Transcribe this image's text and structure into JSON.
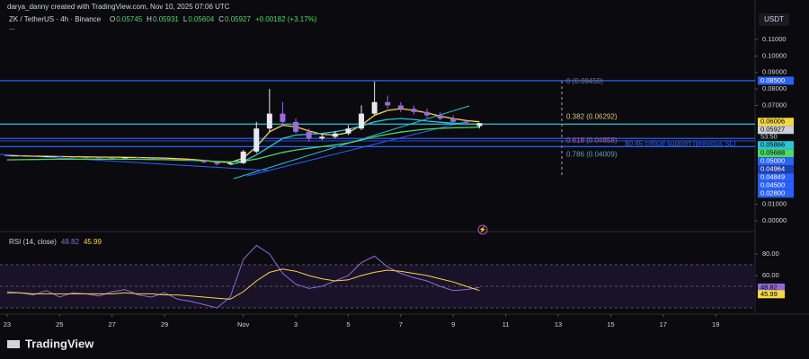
{
  "chart_data": {
    "type": "candlestick",
    "watermark": "darya_danny created with TradingView.com, Nov 10, 2025 07:06 UTC",
    "title": "ZK / TetherUS · 4h · Binance",
    "ohlc_prefixes": [
      "O",
      "H",
      "L",
      "C"
    ],
    "change": "+0.00182 (+3.17%)",
    "menu": "...",
    "currency": "USDT",
    "brand": "TradingView",
    "up_color": "#e8e8f0",
    "down_color": "#9c6ade",
    "x": [
      0,
      0.5,
      1,
      1.5,
      2,
      2.5,
      3,
      3.5,
      4,
      4.5,
      5,
      5.5,
      6,
      6.5,
      7,
      7.5,
      8,
      8.5,
      9,
      9.5,
      10,
      10.5,
      11,
      11.5,
      12,
      12.5,
      13,
      13.5,
      14,
      14.5,
      15,
      15.5,
      16,
      16.5,
      17,
      17.5,
      18
    ],
    "open": [
      0.0398,
      0.0395,
      0.0392,
      0.039,
      0.0392,
      0.0388,
      0.0386,
      0.0385,
      0.0384,
      0.0383,
      0.0385,
      0.038,
      0.0378,
      0.0375,
      0.037,
      0.0365,
      0.0355,
      0.0345,
      0.035,
      0.042,
      0.056,
      0.065,
      0.06,
      0.054,
      0.05,
      0.051,
      0.053,
      0.056,
      0.065,
      0.072,
      0.07,
      0.068,
      0.066,
      0.064,
      0.062,
      0.06,
      0.05745
    ],
    "high": [
      0.0402,
      0.0399,
      0.0396,
      0.0395,
      0.0395,
      0.0391,
      0.0389,
      0.0388,
      0.0387,
      0.0388,
      0.0388,
      0.0383,
      0.0381,
      0.0378,
      0.0373,
      0.0368,
      0.0358,
      0.0356,
      0.043,
      0.06,
      0.08,
      0.072,
      0.062,
      0.056,
      0.053,
      0.0545,
      0.058,
      0.07,
      0.0845,
      0.076,
      0.072,
      0.07,
      0.068,
      0.066,
      0.064,
      0.0615,
      0.05931
    ],
    "low": [
      0.0392,
      0.0389,
      0.0387,
      0.0387,
      0.0385,
      0.0383,
      0.0382,
      0.0381,
      0.038,
      0.038,
      0.0377,
      0.0375,
      0.0372,
      0.0367,
      0.0362,
      0.035,
      0.0335,
      0.034,
      0.0345,
      0.041,
      0.054,
      0.058,
      0.053,
      0.048,
      0.049,
      0.05,
      0.052,
      0.055,
      0.064,
      0.068,
      0.066,
      0.0645,
      0.0625,
      0.061,
      0.059,
      0.058,
      0.05604
    ],
    "close": [
      0.0395,
      0.0392,
      0.039,
      0.0392,
      0.0388,
      0.0386,
      0.0385,
      0.0384,
      0.0383,
      0.0385,
      0.038,
      0.0378,
      0.0375,
      0.037,
      0.0365,
      0.0355,
      0.0345,
      0.035,
      0.042,
      0.056,
      0.065,
      0.06,
      0.054,
      0.05,
      0.051,
      0.053,
      0.056,
      0.065,
      0.072,
      0.07,
      0.068,
      0.066,
      0.064,
      0.062,
      0.06,
      0.0595,
      0.05927
    ],
    "series": [
      {
        "color": "#f5d742",
        "values": [
          0.0395,
          0.0394,
          0.0392,
          0.0391,
          0.039,
          0.0389,
          0.0388,
          0.0387,
          0.0386,
          0.0385,
          0.0384,
          0.0382,
          0.038,
          0.0377,
          0.0373,
          0.0366,
          0.0358,
          0.0354,
          0.038,
          0.045,
          0.054,
          0.058,
          0.057,
          0.0545,
          0.0525,
          0.052,
          0.0535,
          0.058,
          0.064,
          0.067,
          0.068,
          0.067,
          0.0655,
          0.0635,
          0.062,
          0.0608,
          0.06006
        ]
      },
      {
        "color": "#26c6da",
        "values": [
          null,
          null,
          null,
          null,
          null,
          null,
          null,
          null,
          null,
          null,
          null,
          null,
          null,
          null,
          null,
          null,
          null,
          0.034,
          0.036,
          0.04,
          0.045,
          0.05,
          0.052,
          0.0525,
          0.053,
          0.054,
          0.0555,
          0.0575,
          0.06,
          0.0615,
          0.062,
          0.0615,
          0.0605,
          0.0598,
          0.0592,
          0.0588,
          0.05866
        ]
      },
      {
        "color": "#4cd964",
        "values": [
          0.037,
          0.0371,
          0.0372,
          0.0373,
          0.0374,
          0.0374,
          0.0374,
          0.0374,
          0.0374,
          0.0374,
          0.0373,
          0.0372,
          0.0371,
          0.0369,
          0.0367,
          0.0364,
          0.036,
          0.0358,
          0.0362,
          0.0375,
          0.0395,
          0.0415,
          0.043,
          0.044,
          0.045,
          0.046,
          0.0472,
          0.049,
          0.051,
          0.0525,
          0.0538,
          0.0548,
          0.0556,
          0.0561,
          0.0564,
          0.0566,
          0.05688
        ]
      }
    ],
    "levels": [
      {
        "value": 0.085,
        "color": "#2962ff"
      },
      {
        "value": 0.05866,
        "color": "#26c6da"
      },
      {
        "value": 0.05,
        "color": "#2962ff"
      },
      {
        "value": 0.04849,
        "color": "#1e3fae"
      },
      {
        "value": 0.045,
        "color": "#2962ff"
      }
    ],
    "fib": [
      {
        "value": 0.0845,
        "label": "0 (0.08450)",
        "color": "#787b86"
      },
      {
        "value": 0.06292,
        "label": "0.382 (0.06292)",
        "color": "#e0c36a"
      },
      {
        "value": 0.04858,
        "label": "0.618 (0.04858)",
        "color": "#b05a8a"
      },
      {
        "value": 0.04009,
        "label": "0.786 (0.04009)",
        "color": "#4fa3c7"
      }
    ],
    "annotation": {
      "value": 0.0465,
      "label": "$0.45 critical support (previous SL)",
      "color": "#2962ff"
    },
    "price_labels": [
      {
        "value": 0.085,
        "label": "0.08500",
        "color": "#2962ff"
      },
      {
        "value": 0.06006,
        "label": "0.06006",
        "color": "#f5d742"
      },
      {
        "value": 0.05927,
        "label": "0.05927",
        "color": "#cfcfd8"
      },
      {
        "value": 0.05866,
        "label": "0.05866",
        "color": "#26c6da"
      },
      {
        "value": 0.05688,
        "label": "0.05688",
        "color": "#4cd964"
      },
      {
        "value": 0.05,
        "label": "0.05000",
        "color": "#2962ff"
      },
      {
        "value": 0.04964,
        "label": "0.04964",
        "color": "#1e3fae"
      },
      {
        "value": 0.04849,
        "label": "0.04849",
        "color": "#2962ff"
      },
      {
        "value": 0.045,
        "label": "0.04500",
        "color": "#2962ff"
      },
      {
        "value": 0.028,
        "label": "0.02800",
        "color": "#2962ff"
      }
    ],
    "countdown": "53:50",
    "ylim": [
      -0.0065,
      0.1176
    ],
    "yticks": [
      {
        "value": 0.11,
        "label": "0.11000"
      },
      {
        "value": 0.1,
        "label": "0.10000"
      },
      {
        "value": 0.09,
        "label": "0.09000"
      },
      {
        "value": 0.08,
        "label": "0.08000"
      },
      {
        "value": 0.07,
        "label": "0.07000"
      },
      {
        "value": 0.01,
        "label": "0.01000"
      },
      {
        "value": 0,
        "label": "0.00000"
      }
    ],
    "xlim": [
      -0.27,
      28.5
    ],
    "xticks": [
      {
        "value": 0,
        "label": "23"
      },
      {
        "value": 2,
        "label": "25"
      },
      {
        "value": 4,
        "label": "27"
      },
      {
        "value": 6,
        "label": "29"
      },
      {
        "value": 9,
        "label": "Nov"
      },
      {
        "value": 11,
        "label": "3"
      },
      {
        "value": 13,
        "label": "5"
      },
      {
        "value": 15,
        "label": "7"
      },
      {
        "value": 17,
        "label": "9"
      },
      {
        "value": 19,
        "label": "11"
      },
      {
        "value": 21,
        "label": "13"
      },
      {
        "value": 23,
        "label": "15"
      },
      {
        "value": 25,
        "label": "17"
      },
      {
        "value": 27,
        "label": "19"
      }
    ],
    "rsi": {
      "title": "RSI (14, close)",
      "ylim": [
        25,
        95
      ],
      "yticks": [
        {
          "value": 80,
          "label": "80.00"
        },
        {
          "value": 60,
          "label": "60.00"
        }
      ],
      "bands": [
        70,
        50,
        30
      ],
      "series": [
        {
          "color": "#8e6bd8",
          "values": [
            45,
            44,
            42,
            46,
            40,
            44,
            43,
            41,
            45,
            47,
            42,
            40,
            44,
            38,
            36,
            33,
            30,
            40,
            75,
            88,
            80,
            62,
            52,
            48,
            50,
            55,
            60,
            72,
            78,
            68,
            62,
            58,
            55,
            50,
            46,
            47,
            48.82
          ]
        },
        {
          "color": "#f5d742",
          "values": [
            44,
            44,
            43,
            43,
            43,
            43,
            43,
            43,
            43,
            44,
            43,
            43,
            42,
            42,
            41,
            40,
            39,
            38,
            45,
            55,
            63,
            66,
            64,
            60,
            57,
            55,
            56,
            60,
            63,
            65,
            64,
            62,
            60,
            57,
            54,
            50,
            45.99
          ]
        }
      ]
    }
  }
}
